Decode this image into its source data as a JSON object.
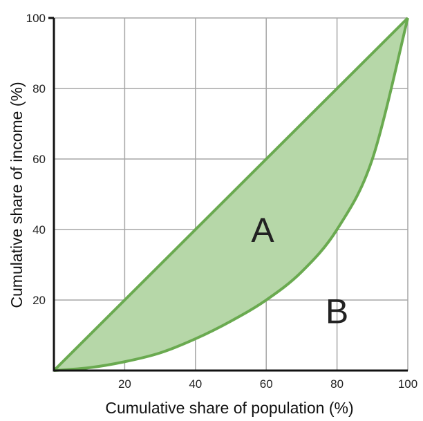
{
  "chart_data": {
    "type": "line",
    "title": "",
    "xlabel": "Cumulative share of population (%)",
    "ylabel": "Cumulative share of income (%)",
    "xlim": [
      0,
      100
    ],
    "ylim": [
      0,
      100
    ],
    "x_ticks": [
      20,
      40,
      60,
      80,
      100
    ],
    "y_ticks": [
      20,
      40,
      60,
      80,
      100
    ],
    "grid": true,
    "series": [
      {
        "x": [
          0,
          100
        ],
        "y": [
          0,
          100
        ]
      },
      {
        "x": [
          0,
          10,
          20,
          30,
          40,
          50,
          60,
          70,
          80,
          90,
          100
        ],
        "y": [
          0,
          0.8,
          2.5,
          5,
          9,
          14,
          20,
          28,
          40,
          60,
          100
        ]
      }
    ],
    "annotations": [
      {
        "text": "A",
        "x": 59,
        "y": 40
      },
      {
        "text": "B",
        "x": 80,
        "y": 17
      }
    ],
    "colors": {
      "line": "#6aaa50",
      "fill": "#b6d7a8",
      "axis": "#111111",
      "grid": "#a6a6a6"
    }
  }
}
